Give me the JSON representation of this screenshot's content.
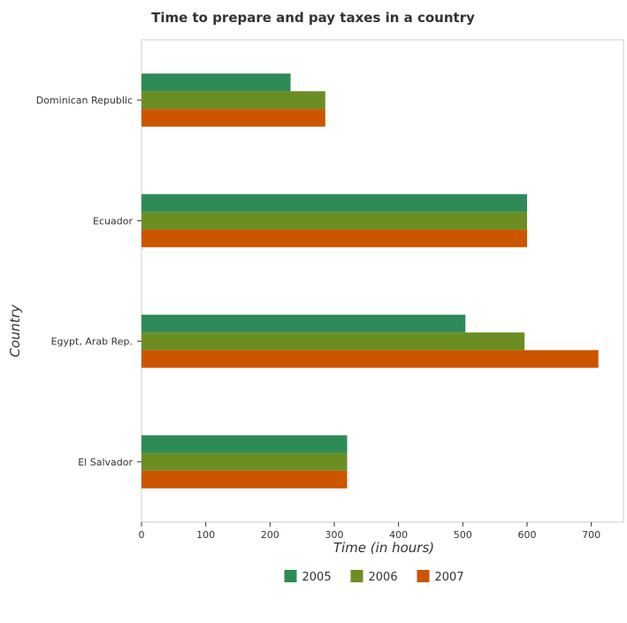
{
  "chart_data": {
    "type": "bar",
    "orientation": "horizontal",
    "title": "Time to prepare and pay taxes in a country",
    "xlabel": "Time (in hours)",
    "ylabel": "Country",
    "xlim": [
      0,
      750
    ],
    "xticks": [
      0,
      100,
      200,
      300,
      400,
      500,
      600,
      700
    ],
    "grid": false,
    "legend_position": "bottom-center",
    "categories": [
      "Dominican Republic",
      "Ecuador",
      "Egypt, Arab Rep.",
      "El Salvador"
    ],
    "series": [
      {
        "name": "2005",
        "color": "#2e8b57",
        "values": [
          232,
          600,
          504,
          320
        ]
      },
      {
        "name": "2006",
        "color": "#6b8e23",
        "values": [
          286,
          600,
          596,
          320
        ]
      },
      {
        "name": "2007",
        "color": "#cc5500",
        "values": [
          286,
          600,
          711,
          320
        ]
      }
    ]
  }
}
